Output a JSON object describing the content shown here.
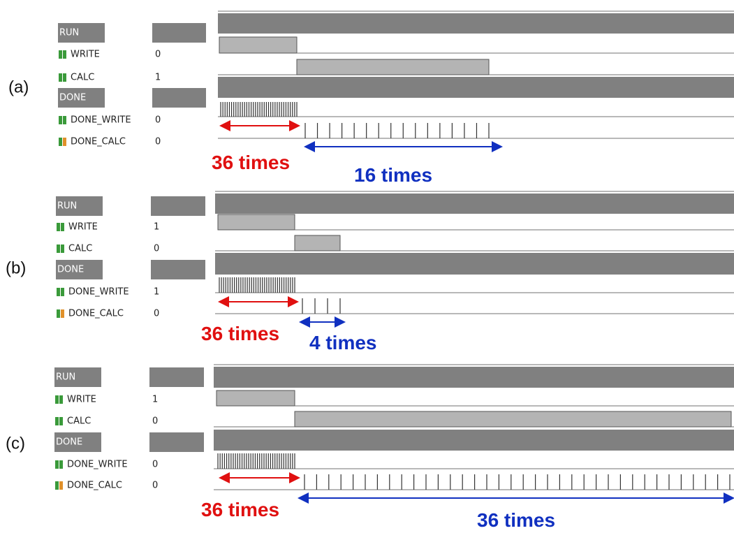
{
  "panels": [
    {
      "label": "(a)",
      "signals": [
        {
          "name": "RUN"
        },
        {
          "name": "WRITE",
          "value": "0"
        },
        {
          "name": "CALC",
          "value": "1"
        },
        {
          "name": "DONE"
        },
        {
          "name": "DONE_WRITE",
          "value": "0"
        },
        {
          "name": "DONE_CALC",
          "value": "0"
        }
      ],
      "write_count": {
        "count": 36,
        "label": "36 times"
      },
      "calc_count": {
        "count": 16,
        "label": "16 times"
      }
    },
    {
      "label": "(b)",
      "signals": [
        {
          "name": "RUN"
        },
        {
          "name": "WRITE",
          "value": "1"
        },
        {
          "name": "CALC",
          "value": "0"
        },
        {
          "name": "DONE"
        },
        {
          "name": "DONE_WRITE",
          "value": "1"
        },
        {
          "name": "DONE_CALC",
          "value": "0"
        }
      ],
      "write_count": {
        "count": 36,
        "label": "36 times"
      },
      "calc_count": {
        "count": 4,
        "label": "4 times"
      }
    },
    {
      "label": "(c)",
      "signals": [
        {
          "name": "RUN"
        },
        {
          "name": "WRITE",
          "value": "1"
        },
        {
          "name": "CALC",
          "value": "0"
        },
        {
          "name": "DONE"
        },
        {
          "name": "DONE_WRITE",
          "value": "0"
        },
        {
          "name": "DONE_CALC",
          "value": "0"
        }
      ],
      "write_count": {
        "count": 36,
        "label": "36 times"
      },
      "calc_count": {
        "count": 36,
        "label": "36 times"
      }
    }
  ]
}
